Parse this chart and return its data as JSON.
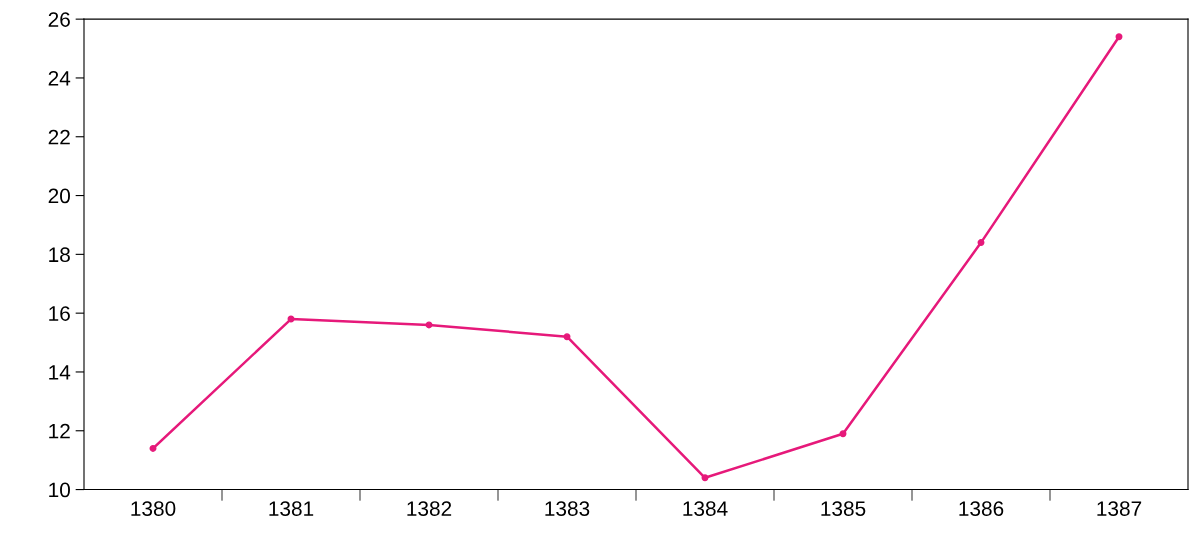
{
  "chart_data": {
    "type": "line",
    "categories": [
      "1380",
      "1381",
      "1382",
      "1383",
      "1384",
      "1385",
      "1386",
      "1387"
    ],
    "values": [
      11.4,
      15.8,
      15.6,
      15.2,
      10.4,
      11.9,
      18.4,
      25.4
    ],
    "color": "#e6197a",
    "marker": "circle",
    "line_style": "solid",
    "ylim": [
      10,
      26
    ],
    "yticks": [
      10,
      12,
      14,
      16,
      18,
      20,
      22,
      24,
      26
    ],
    "grid": false,
    "legend": false
  }
}
